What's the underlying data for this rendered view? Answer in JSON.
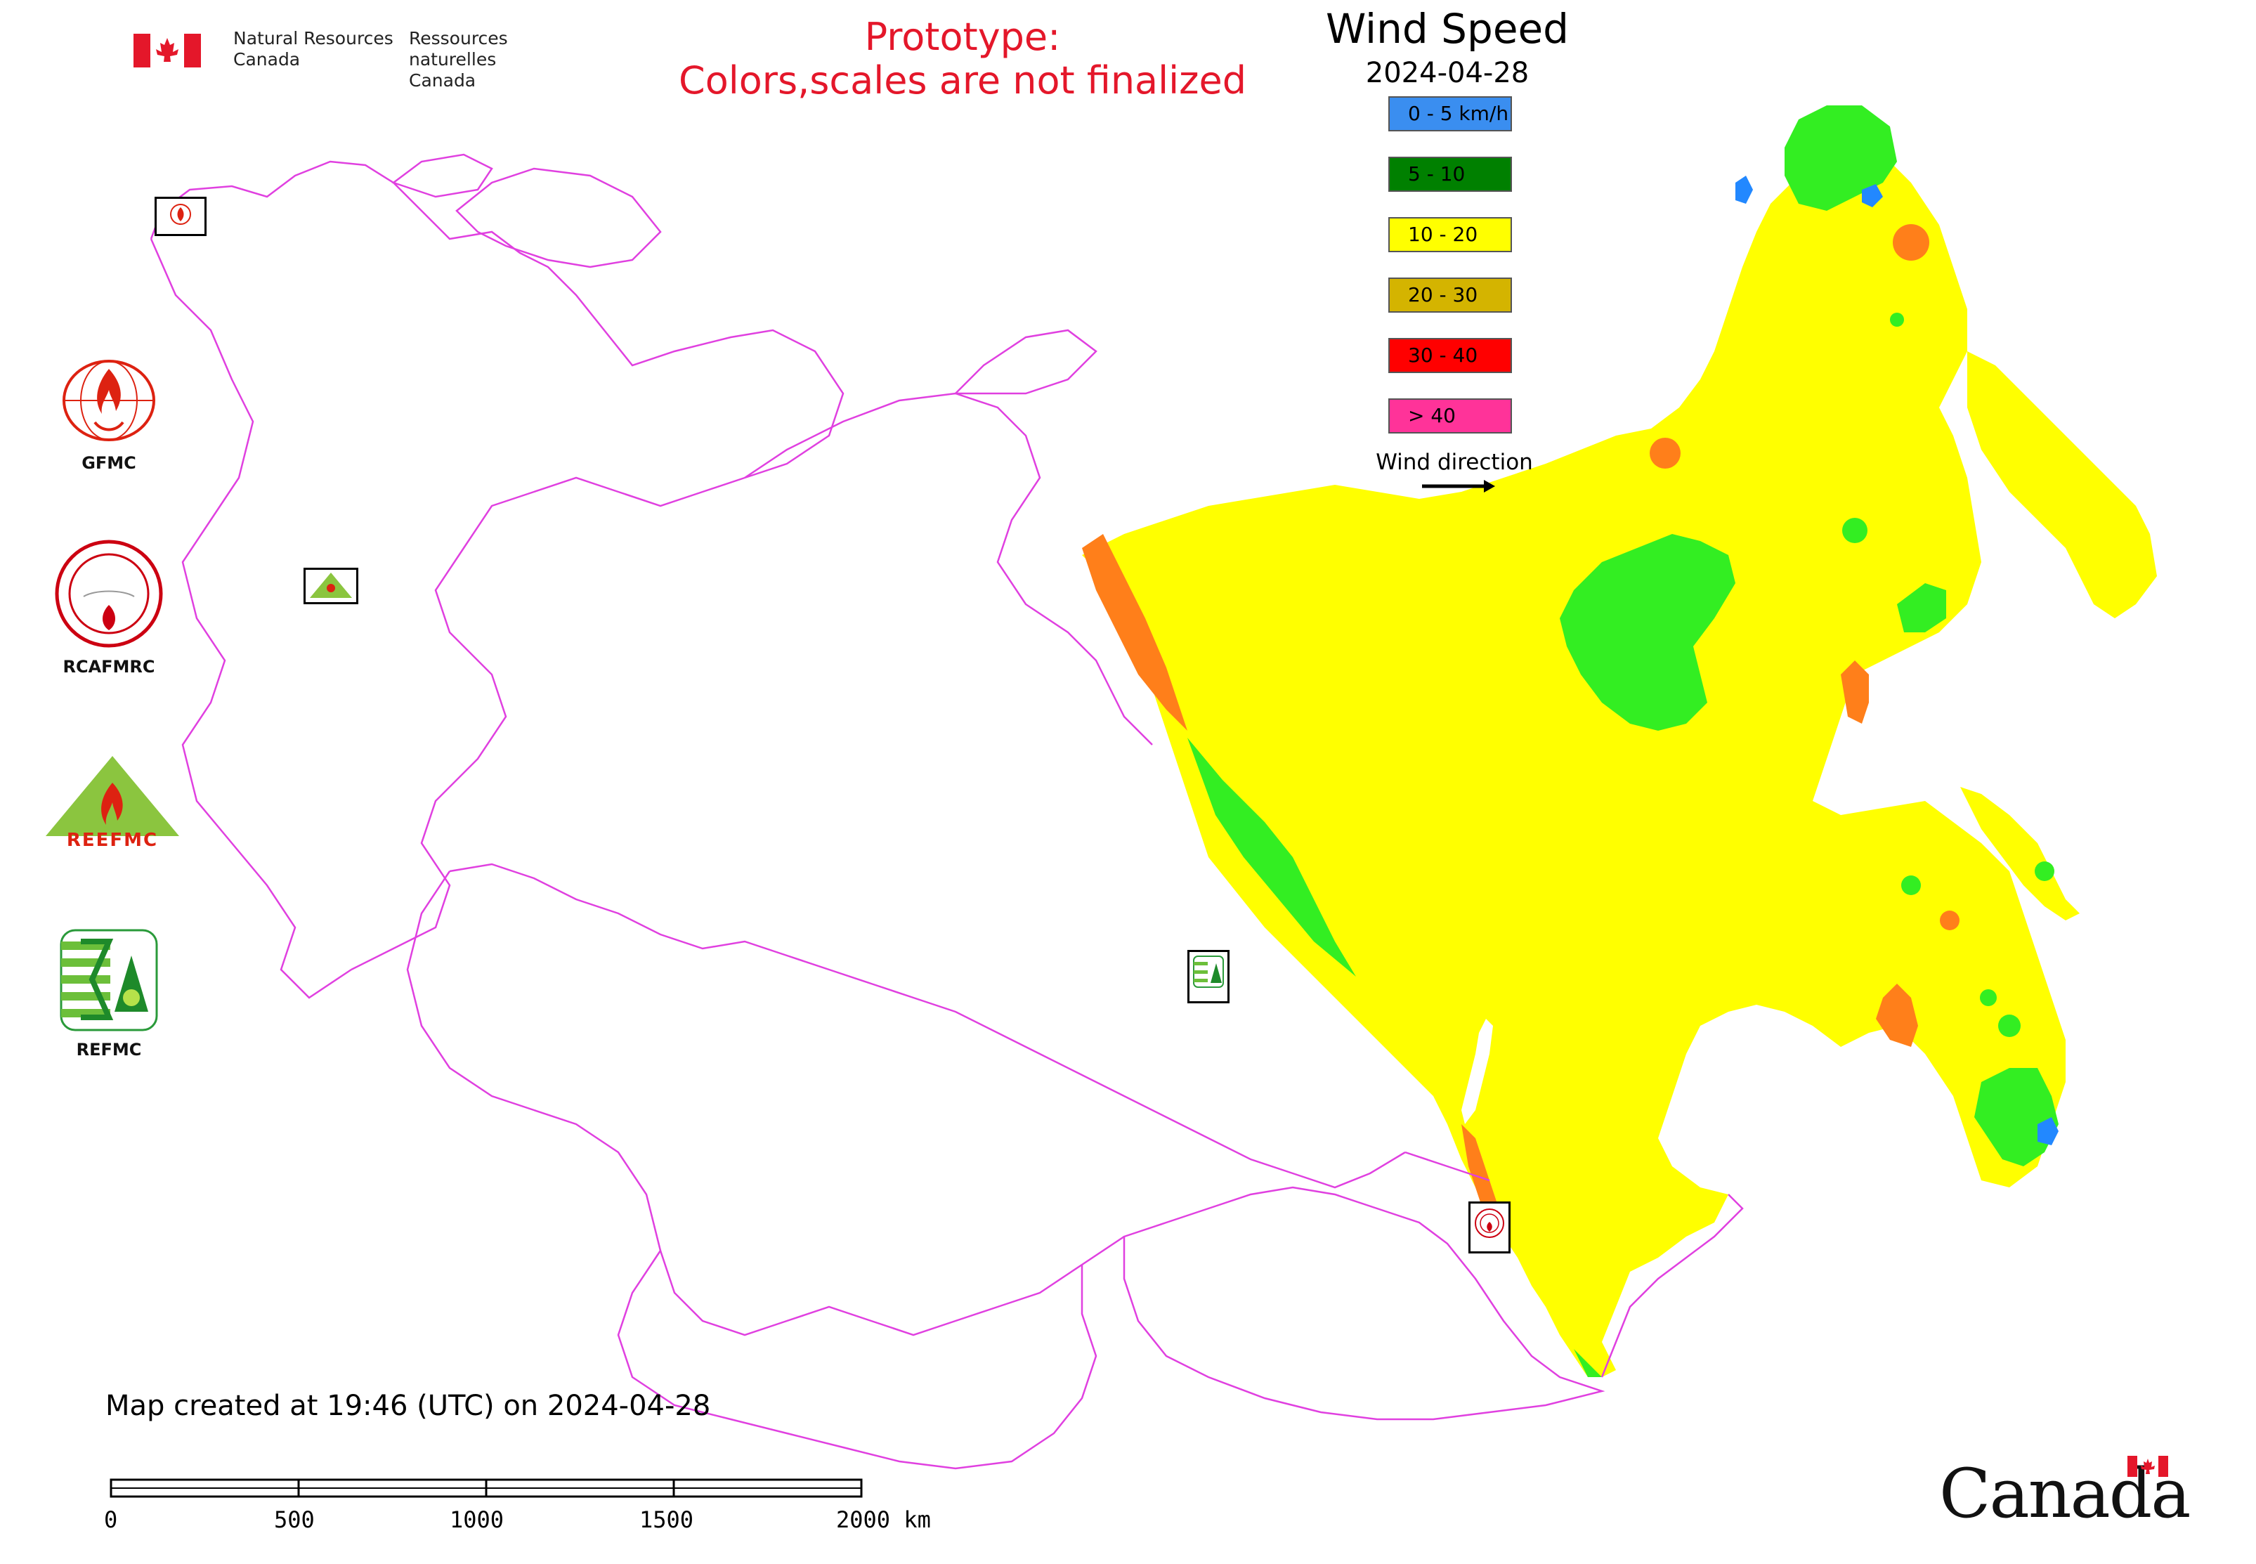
{
  "header": {
    "agency_en_1": "Natural Resources",
    "agency_en_2": "Canada",
    "agency_fr_1": "Ressources naturelles",
    "agency_fr_2": "Canada",
    "prototype_line1": "Prototype:",
    "prototype_line2": "Colors,scales are not finalized",
    "title": "Wind Speed",
    "date": "2024-04-28"
  },
  "legend": {
    "items": [
      {
        "label": "0 - 5 km/h",
        "color": "#3a8ef0"
      },
      {
        "label": "5 - 10",
        "color": "#008000"
      },
      {
        "label": "10 - 20",
        "color": "#ffff00"
      },
      {
        "label": "20 - 30",
        "color": "#d4b400"
      },
      {
        "label": "30 - 40",
        "color": "#ff0000"
      },
      {
        "label": "> 40",
        "color": "#ff3399"
      }
    ],
    "wind_direction_label": "Wind direction"
  },
  "organizations": [
    {
      "label": "GFMC"
    },
    {
      "label": "RCAFMRC"
    },
    {
      "label": ""
    },
    {
      "label": "REFMC"
    }
  ],
  "map_colors": {
    "border": "#e040e0",
    "yellow": "#ffff00",
    "green": "#33ee22",
    "orange": "#ff7f1a",
    "blue": "#2288ff"
  },
  "footer": {
    "created": "Map created at 19:46 (UTC) on 2024-04-28",
    "scale_ticks": [
      "0",
      "500",
      "1000",
      "1500",
      "2000 km"
    ]
  },
  "wordmark": "Canada"
}
